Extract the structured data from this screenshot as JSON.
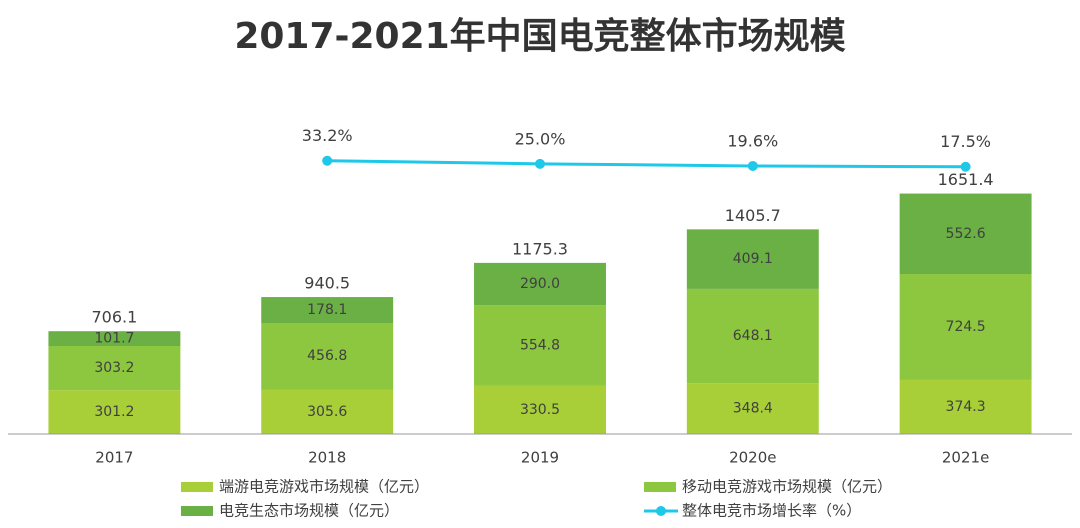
{
  "chart_data": {
    "type": "bar",
    "stacked": true,
    "title": "2017-2021年中国电竞整体市场规模",
    "categories": [
      "2017",
      "2018",
      "2019",
      "2020e",
      "2021e"
    ],
    "series": [
      {
        "name": "端游电竞游戏市场规模（亿元）",
        "color": "#a8cf38",
        "values": [
          301.2,
          305.6,
          330.5,
          348.4,
          374.3
        ],
        "value_labels": [
          "301.2",
          "305.6",
          "330.5",
          "348.4",
          "374.3"
        ]
      },
      {
        "name": "移动电竞游戏市场规模（亿元）",
        "color": "#8dc63f",
        "values": [
          303.2,
          456.8,
          554.8,
          648.1,
          724.5
        ],
        "value_labels": [
          "303.2",
          "456.8",
          "554.8",
          "648.1",
          "724.5"
        ]
      },
      {
        "name": "电竞生态市场规模（亿元）",
        "color": "#6ab045",
        "values": [
          101.7,
          178.1,
          290.0,
          409.1,
          552.6
        ],
        "value_labels": [
          "101.7",
          "178.1",
          "290.0",
          "409.1",
          "552.6"
        ]
      },
      {
        "name": "整体电竞市场增长率（%）",
        "type": "line",
        "axis": "y2",
        "color": "#1ec8e8",
        "values": [
          null,
          33.2,
          25.0,
          19.6,
          17.5
        ],
        "value_labels": [
          null,
          "33.2%",
          "25.0%",
          "19.6%",
          "17.5%"
        ]
      }
    ],
    "totals": [
      706.1,
      940.5,
      1175.3,
      1405.7,
      1651.4
    ],
    "ylim": [
      0,
      2500
    ],
    "y2lim": [
      -680,
      270
    ],
    "grid": false
  }
}
